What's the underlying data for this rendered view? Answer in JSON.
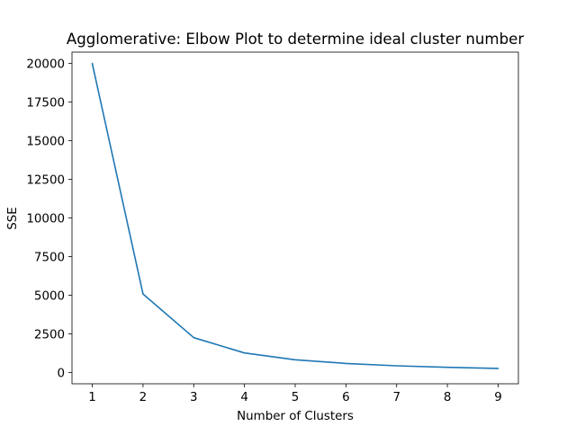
{
  "chart_data": {
    "type": "line",
    "title": "Agglomerative: Elbow Plot to determine ideal cluster number",
    "xlabel": "Number of Clusters",
    "ylabel": "SSE",
    "x": [
      1,
      2,
      3,
      4,
      5,
      6,
      7,
      8,
      9
    ],
    "series": [
      {
        "values": [
          20000,
          5080,
          2250,
          1260,
          820,
          580,
          430,
          330,
          260
        ],
        "color": "#1f77b4"
      }
    ],
    "xlim": [
      0.6,
      9.4
    ],
    "ylim": [
      -735,
      20735
    ],
    "xticks": [
      1,
      2,
      3,
      4,
      5,
      6,
      7,
      8,
      9
    ],
    "yticks": [
      0,
      2500,
      5000,
      7500,
      10000,
      12500,
      15000,
      17500,
      20000
    ],
    "grid": false,
    "legend": "none"
  }
}
